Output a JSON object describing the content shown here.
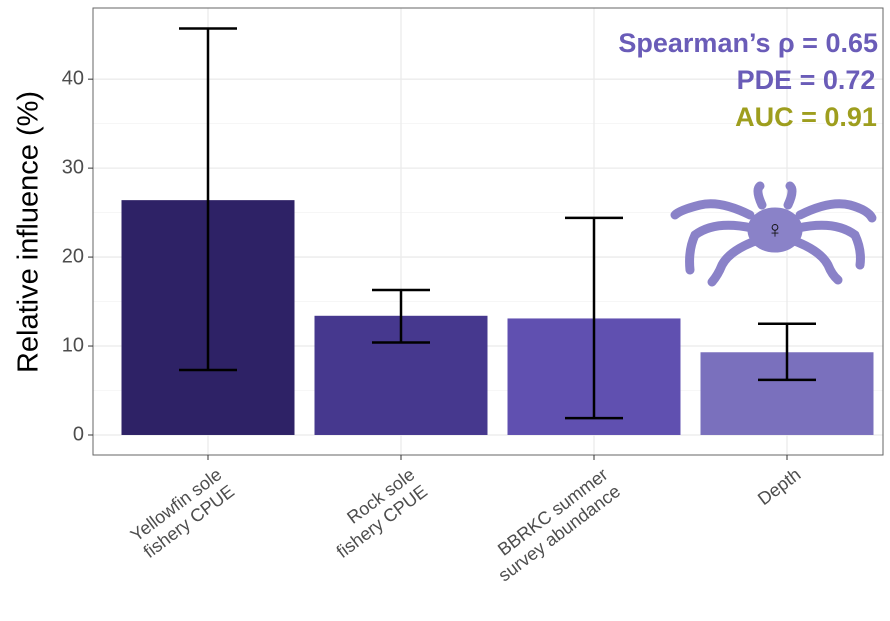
{
  "chart_data": {
    "type": "bar",
    "y_label": "Relative influence (%)",
    "categories": [
      "Yellowfin sole\nfishery CPUE",
      "Rock sole\nfishery CPUE",
      "BBRKC summer\nsurvey abundance",
      "Depth"
    ],
    "values": [
      26.4,
      13.4,
      13.1,
      9.3
    ],
    "lower": [
      7.3,
      10.4,
      1.9,
      6.2
    ],
    "upper": [
      45.7,
      16.3,
      24.4,
      12.5
    ],
    "colors": [
      "#2e2266",
      "#46388e",
      "#6050b0",
      "#7a70bd"
    ],
    "ylim": [
      -2.25,
      48
    ],
    "yticks": [
      0,
      10,
      20,
      30,
      40
    ],
    "grid": true,
    "annotations": [
      {
        "text": "Spearman’s ρ = 0.65",
        "color": "#6a5cb8"
      },
      {
        "text": "PDE = 0.72",
        "color": "#6a5cb8"
      },
      {
        "text": "AUC = 0.91",
        "color": "#9e9e1e"
      }
    ],
    "icon_label": "♀"
  }
}
